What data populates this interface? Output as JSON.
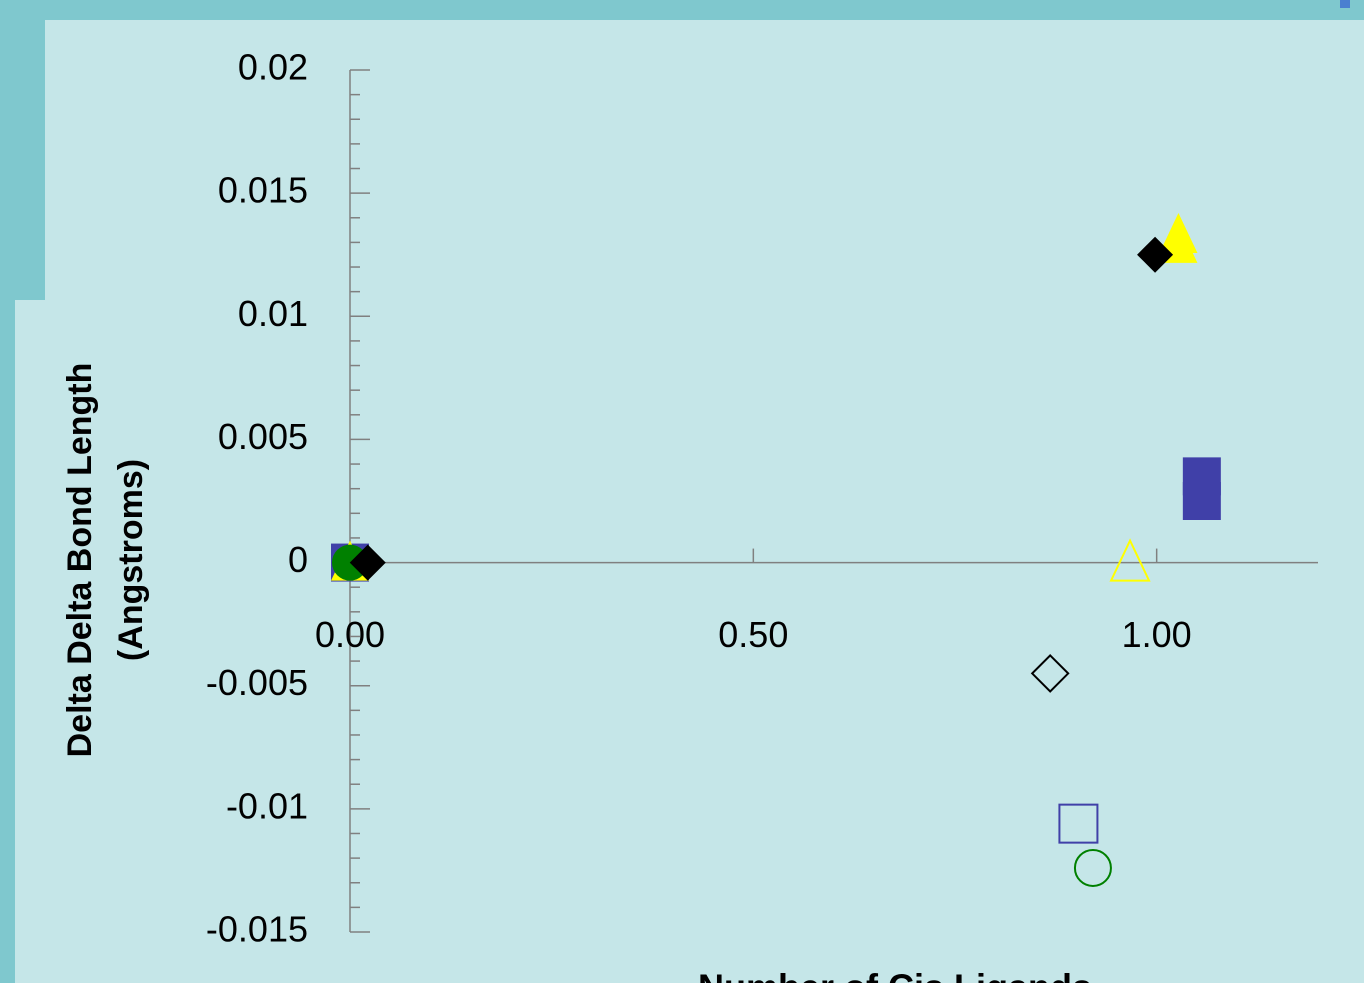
{
  "chart_data": {
    "type": "scatter",
    "x_label": "Number of Cis Ligands",
    "y_label": [
      "Delta Delta Bond Length",
      "(Angstroms)"
    ],
    "xlim": [
      0,
      1.2
    ],
    "xticks": [
      {
        "value": 0,
        "label": "0.00"
      },
      {
        "value": 0.5,
        "label": "0.50"
      },
      {
        "value": 1,
        "label": "1.00"
      }
    ],
    "ylim": [
      -0.015,
      0.02
    ],
    "yticks": [
      0.02,
      0.015,
      0.01,
      0.005,
      0,
      -0.005,
      -0.01,
      -0.015
    ],
    "grid": false,
    "series": [
      {
        "color": "#4040a8",
        "marker": "square",
        "filled": true,
        "x": [
          0,
          1.056,
          1.056
        ],
        "values": [
          0,
          0.0035,
          0.0025
        ]
      },
      {
        "color": "#ffff00",
        "marker": "triangle",
        "filled": true,
        "x": [
          0,
          1.027,
          1.027
        ],
        "values": [
          0,
          0.0133,
          0.0129
        ]
      },
      {
        "color": "#008000",
        "marker": "circle",
        "filled": true,
        "x": [
          0
        ],
        "values": [
          0
        ]
      },
      {
        "color": "#000000",
        "marker": "diamond",
        "filled": true,
        "x": [
          0.022,
          0.998
        ],
        "values": [
          0,
          0.0125
        ]
      },
      {
        "color": "#ffff00",
        "marker": "triangle",
        "filled": false,
        "x": [
          0.967
        ],
        "values": [
          0
        ]
      },
      {
        "color": "#000000",
        "marker": "diamond",
        "filled": false,
        "x": [
          0.868
        ],
        "values": [
          -0.0045
        ]
      },
      {
        "color": "#4040a8",
        "marker": "square",
        "filled": false,
        "x": [
          0.903
        ],
        "values": [
          -0.0106
        ]
      },
      {
        "color": "#008000",
        "marker": "circle",
        "filled": false,
        "x": [
          0.921
        ],
        "values": [
          -0.0124
        ]
      }
    ]
  }
}
